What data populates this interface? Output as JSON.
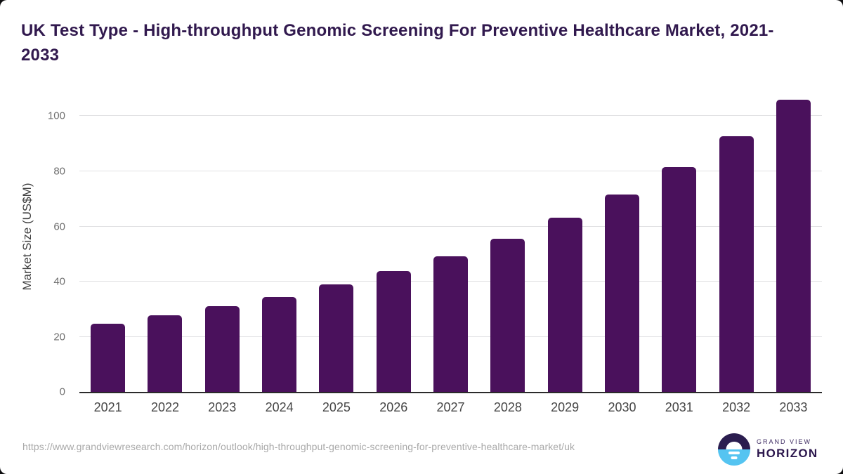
{
  "header": {
    "title": "UK Test Type - High-throughput Genomic Screening For Preventive Healthcare Market, 2021-2033"
  },
  "chart_data": {
    "type": "bar",
    "title": "UK Test Type - High-throughput Genomic Screening For Preventive Healthcare Market, 2021-2033",
    "categories": [
      "2021",
      "2022",
      "2023",
      "2024",
      "2025",
      "2026",
      "2027",
      "2028",
      "2029",
      "2030",
      "2031",
      "2032",
      "2033"
    ],
    "values": [
      24.6,
      27.7,
      31.0,
      34.5,
      39.0,
      43.8,
      49.2,
      55.6,
      63.2,
      71.6,
      81.5,
      92.7,
      106.0
    ],
    "xlabel": "",
    "ylabel": "Market Size (US$M)",
    "ylim": [
      0,
      107
    ],
    "yticks": [
      0,
      20,
      40,
      60,
      80,
      100
    ],
    "grid": "horizontal",
    "legend": "none",
    "bar_color": "#4a115c"
  },
  "footer": {
    "source_url": "https://www.grandviewresearch.com/horizon/outlook/high-throughput-genomic-screening-for-preventive-healthcare-market/uk",
    "logo": {
      "line1": "GRAND VIEW",
      "line2": "HORIZON"
    }
  },
  "colors": {
    "title_text": "#31194e",
    "bar": "#4a115c",
    "axis_line": "#2b2b2b",
    "gridline": "#e1e1e3",
    "tick_text": "#6e6e6e",
    "xlabel_text": "#454545",
    "url_text": "#a9a9a9",
    "logo_dark": "#2b1d4f",
    "logo_blue": "#55c4f1"
  }
}
